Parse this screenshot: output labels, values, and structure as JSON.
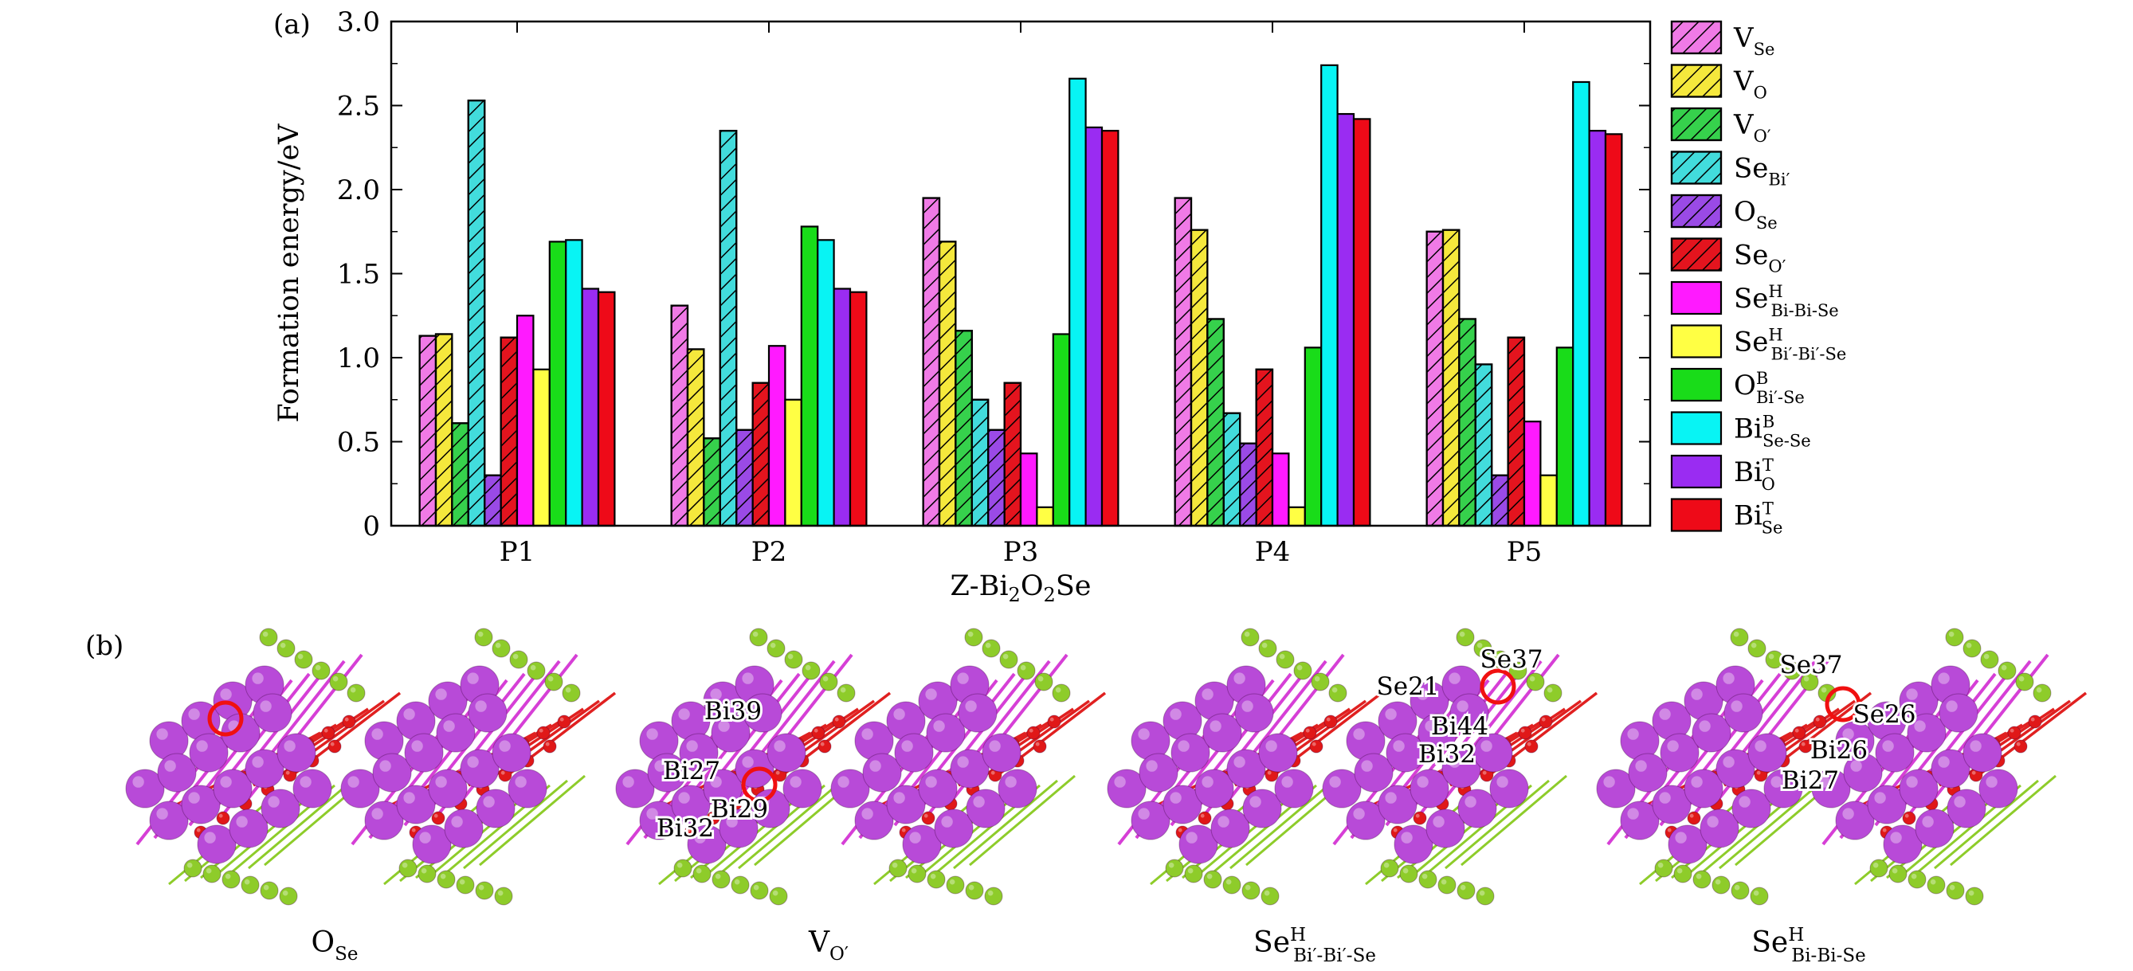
{
  "panel_labels": {
    "a": "(a)",
    "b": "(b)"
  },
  "chart_data": {
    "type": "bar",
    "title": "",
    "ylabel": "Formation energy/eV",
    "xlabel": {
      "base": "Z-Bi",
      "s1": "2",
      "mid": "O",
      "s2": "2",
      "tail": "Se"
    },
    "ylim": [
      0,
      3.0
    ],
    "yticks": [
      "0",
      "0.5",
      "1.0",
      "1.5",
      "2.0",
      "2.5",
      "3.0"
    ],
    "ytick_values": [
      0,
      0.5,
      1.0,
      1.5,
      2.0,
      2.5,
      3.0
    ],
    "categories": [
      "P1",
      "P2",
      "P3",
      "P4",
      "P5"
    ],
    "legend_position": "right",
    "series": [
      {
        "main": "V",
        "sub": "Se",
        "sup": "",
        "color": "#f07ae6",
        "hatch": true,
        "values": [
          1.13,
          1.31,
          1.95,
          1.95,
          1.75
        ]
      },
      {
        "main": "V",
        "sub": "O",
        "sup": "",
        "color": "#f5e83c",
        "hatch": true,
        "values": [
          1.14,
          1.05,
          1.69,
          1.76,
          1.76
        ]
      },
      {
        "main": "V",
        "sub": "O′",
        "sup": "",
        "color": "#36d14c",
        "hatch": true,
        "values": [
          0.61,
          0.52,
          1.16,
          1.23,
          1.23
        ]
      },
      {
        "main": "Se",
        "sub": "Bi′",
        "sup": "",
        "color": "#42dcdc",
        "hatch": true,
        "values": [
          2.53,
          2.35,
          0.75,
          0.67,
          0.96
        ]
      },
      {
        "main": "O",
        "sub": "Se",
        "sup": "",
        "color": "#9a4ae6",
        "hatch": true,
        "values": [
          0.3,
          0.57,
          0.57,
          0.49,
          0.3
        ]
      },
      {
        "main": "Se",
        "sub": "O′",
        "sup": "",
        "color": "#e4141e",
        "hatch": true,
        "values": [
          1.12,
          0.85,
          0.85,
          0.93,
          1.12
        ]
      },
      {
        "main": "Se",
        "sub": "Bi-Bi-Se",
        "sup": "H",
        "color": "#ff1aff",
        "hatch": false,
        "values": [
          1.25,
          1.07,
          0.43,
          0.43,
          0.62
        ]
      },
      {
        "main": "Se",
        "sub": "Bi′-Bi′-Se",
        "sup": "H",
        "color": "#ffff44",
        "hatch": false,
        "values": [
          0.93,
          0.75,
          0.11,
          0.11,
          0.3
        ]
      },
      {
        "main": "O",
        "sub": "Bi′-Se",
        "sup": "B",
        "color": "#19dc19",
        "hatch": false,
        "values": [
          1.69,
          1.78,
          1.14,
          1.06,
          1.06
        ]
      },
      {
        "main": "Bi",
        "sub": "Se-Se",
        "sup": "B",
        "color": "#08f4f4",
        "hatch": false,
        "values": [
          1.7,
          1.7,
          2.66,
          2.74,
          2.64
        ]
      },
      {
        "main": "Bi",
        "sub": "O",
        "sup": "T",
        "color": "#9a2cf2",
        "hatch": false,
        "values": [
          1.41,
          1.41,
          2.37,
          2.45,
          2.35
        ]
      },
      {
        "main": "Bi",
        "sub": "Se",
        "sup": "T",
        "color": "#ee0a18",
        "hatch": false,
        "values": [
          1.39,
          1.39,
          2.35,
          2.42,
          2.33
        ]
      }
    ]
  },
  "structures": [
    {
      "caption_main": "O",
      "caption_sub": "Se",
      "caption_sup": "",
      "atom_labels": []
    },
    {
      "caption_main": "V",
      "caption_sub": "O′",
      "caption_sup": "",
      "atom_labels": [
        "Bi39",
        "Bi27",
        "Bi29",
        "Bi32"
      ]
    },
    {
      "caption_main": "Se",
      "caption_sub": "Bi′-Bi′-Se",
      "caption_sup": "H",
      "atom_labels": [
        "Se37",
        "Se21",
        "Bi44",
        "Bi32"
      ]
    },
    {
      "caption_main": "Se",
      "caption_sub": "Bi-Bi-Se",
      "caption_sup": "H",
      "atom_labels": [
        "Se37",
        "Se26",
        "Bi26",
        "Bi27"
      ]
    }
  ]
}
